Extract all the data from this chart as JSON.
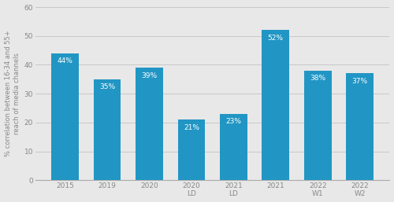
{
  "categories": [
    "2015",
    "2019",
    "2020",
    "2020\nLD",
    "2021\nLD",
    "2021",
    "2022\nW1",
    "2022\nW2"
  ],
  "values": [
    44,
    35,
    39,
    21,
    23,
    52,
    38,
    37
  ],
  "labels": [
    "44%",
    "35%",
    "39%",
    "21%",
    "23%",
    "52%",
    "38%",
    "37%"
  ],
  "bar_color": "#2196C4",
  "background_color": "#e8e8e8",
  "ylabel": "% correlation between 16-34 and 55+\nreach of media channels",
  "ylim": [
    0,
    60
  ],
  "yticks": [
    0,
    10,
    20,
    30,
    40,
    50,
    60
  ],
  "label_color": "#ffffff",
  "label_fontsize": 6.5,
  "ylabel_fontsize": 6.0,
  "tick_fontsize": 6.5,
  "bar_width": 0.65
}
